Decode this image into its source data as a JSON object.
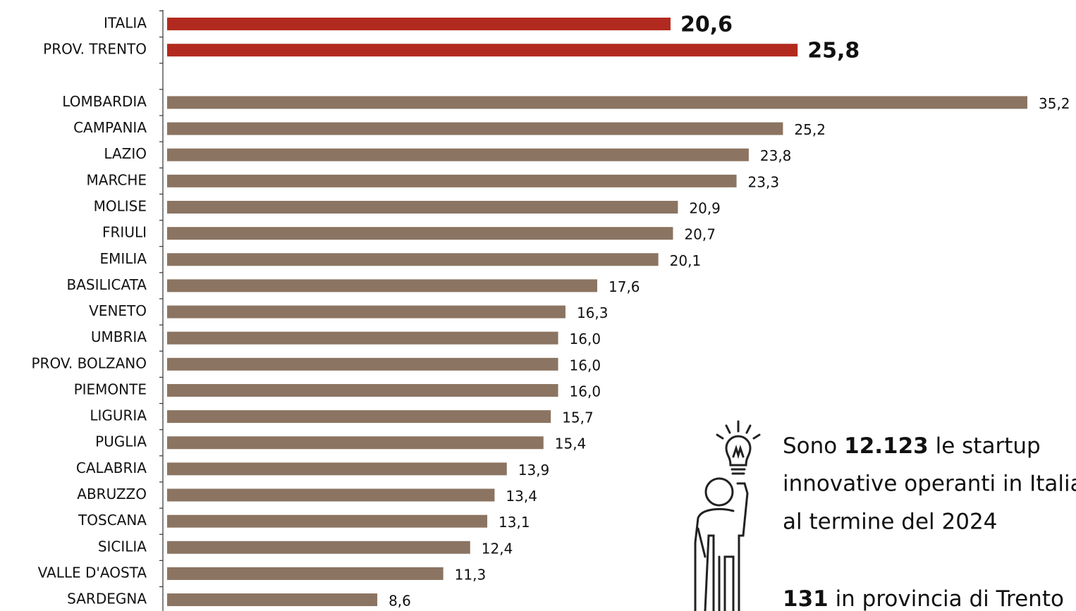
{
  "chart_data": {
    "type": "bar",
    "orientation": "horizontal",
    "categories": [
      "ITALIA",
      "PROV. TRENTO",
      null,
      "LOMBARDIA",
      "CAMPANIA",
      "LAZIO",
      "MARCHE",
      "MOLISE",
      "FRIULI",
      "EMILIA",
      "BASILICATA",
      "VENETO",
      "UMBRIA",
      "PROV. BOLZANO",
      "PIEMONTE",
      "LIGURIA",
      "PUGLIA",
      "CALABRIA",
      "ABRUZZO",
      "TOSCANA",
      "SICILIA",
      "VALLE D'AOSTA",
      "SARDEGNA"
    ],
    "values": [
      20.6,
      25.8,
      null,
      35.2,
      25.2,
      23.8,
      23.3,
      20.9,
      20.7,
      20.1,
      17.6,
      16.3,
      16.0,
      16.0,
      16.0,
      15.7,
      15.4,
      13.9,
      13.4,
      13.1,
      12.4,
      11.3,
      8.6
    ],
    "value_labels": [
      "20,6",
      "25,8",
      null,
      "35,2",
      "25,2",
      "23,8",
      "23,3",
      "20,9",
      "20,7",
      "20,1",
      "17,6",
      "16,3",
      "16,0",
      "16,0",
      "16,0",
      "15,7",
      "15,4",
      "13,9",
      "13,4",
      "13,1",
      "12,4",
      "11,3",
      "8,6"
    ],
    "color": "#8b7461",
    "highlight_color": "#b22a1f",
    "colors": [
      "#b22a1f",
      "#b22a1f",
      null,
      "#8b7461",
      "#8b7461",
      "#8b7461",
      "#8b7461",
      "#8b7461",
      "#8b7461",
      "#8b7461",
      "#8b7461",
      "#8b7461",
      "#8b7461",
      "#8b7461",
      "#8b7461",
      "#8b7461",
      "#8b7461",
      "#8b7461",
      "#8b7461",
      "#8b7461",
      "#8b7461",
      "#8b7461",
      "#8b7461"
    ],
    "annotation": {
      "line1": [
        "Sono ",
        "12.123",
        " le startup"
      ],
      "line2": "innovative operanti in Italia",
      "line3": "al termine del 2024",
      "line4": [
        "131",
        " in provincia di Trento"
      ]
    }
  }
}
